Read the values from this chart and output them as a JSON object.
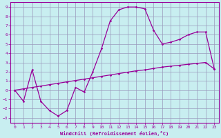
{
  "xlabel": "Windchill (Refroidissement éolien,°C)",
  "background_color": "#c8eef0",
  "grid_color": "#9999bb",
  "line_color": "#990099",
  "xlim": [
    -0.5,
    23.5
  ],
  "ylim": [
    -3.5,
    9.5
  ],
  "xticks": [
    0,
    1,
    2,
    3,
    4,
    5,
    6,
    7,
    8,
    9,
    10,
    11,
    12,
    13,
    14,
    15,
    16,
    17,
    18,
    19,
    20,
    21,
    22,
    23
  ],
  "yticks": [
    -3,
    -2,
    -1,
    0,
    1,
    2,
    3,
    4,
    5,
    6,
    7,
    8,
    9
  ],
  "line1_x": [
    0,
    1,
    2,
    3,
    4,
    5,
    6,
    7,
    8,
    9,
    10,
    11,
    12,
    13,
    14,
    15,
    16,
    17,
    18,
    19,
    20,
    21,
    22,
    23
  ],
  "line1_y": [
    0.0,
    0.15,
    0.3,
    0.45,
    0.6,
    0.75,
    0.9,
    1.05,
    1.2,
    1.35,
    1.5,
    1.65,
    1.8,
    1.95,
    2.1,
    2.2,
    2.35,
    2.5,
    2.6,
    2.7,
    2.8,
    2.9,
    3.0,
    2.3
  ],
  "line2_x": [
    0,
    1,
    2,
    3,
    4,
    5,
    6,
    7,
    8,
    9,
    10,
    11,
    12,
    13,
    14,
    15,
    16,
    17,
    18,
    19,
    20,
    21,
    22,
    23
  ],
  "line2_y": [
    0.0,
    -1.2,
    2.2,
    -1.2,
    -2.2,
    -2.8,
    -2.2,
    0.3,
    -0.2,
    2.0,
    4.5,
    7.5,
    8.7,
    9.0,
    9.0,
    8.8,
    6.5,
    5.0,
    5.2,
    5.5,
    6.0,
    6.3,
    6.3,
    2.3
  ]
}
